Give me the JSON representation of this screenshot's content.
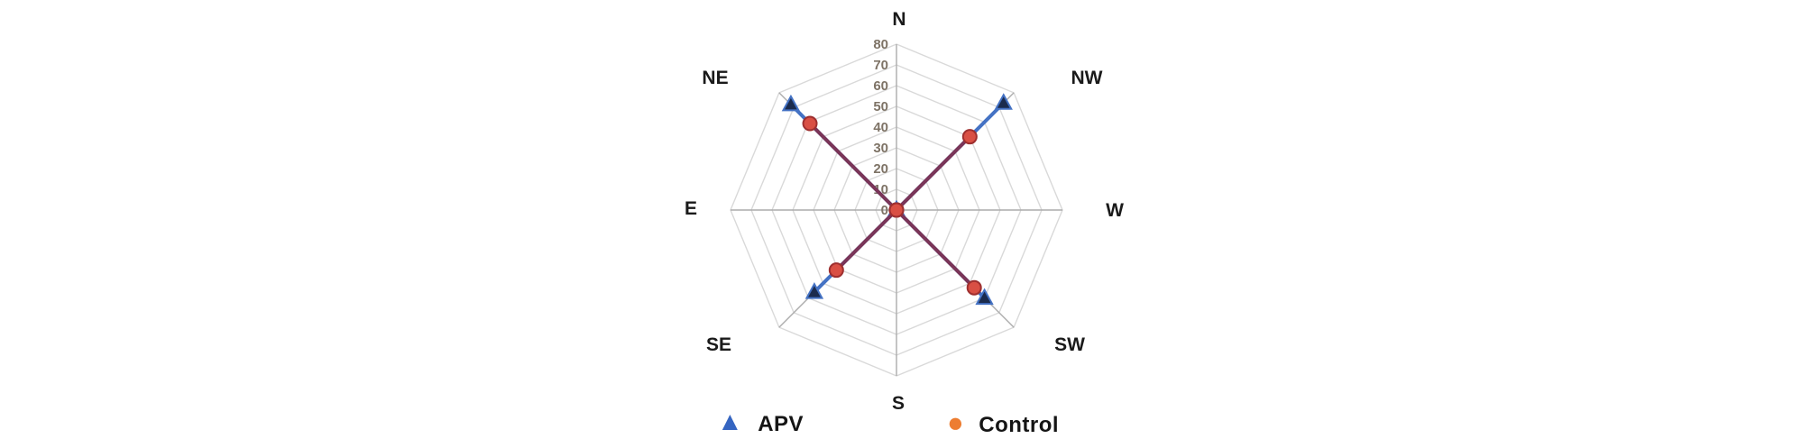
{
  "chart_data": {
    "type": "radar",
    "title": "",
    "categories": [
      "N",
      "NW",
      "W",
      "SW",
      "S",
      "SE",
      "E",
      "NE"
    ],
    "series": [
      {
        "name": "APV",
        "marker": "triangle",
        "line_color": "#4472C4",
        "marker_fill": "#1B2B4D",
        "marker_edge": "#4472C4",
        "legend_color": "#3565C1",
        "values": [
          0,
          73,
          0,
          60,
          0,
          56,
          0,
          72
        ]
      },
      {
        "name": "Control",
        "marker": "circle",
        "line_color": "#7A3558",
        "marker_fill": "#D94F44",
        "marker_edge": "#9E2F2F",
        "legend_color": "#ED7D31",
        "values": [
          0,
          50,
          0,
          53,
          0,
          41,
          0,
          59
        ]
      }
    ],
    "radial_ticks": [
      0,
      10,
      20,
      30,
      40,
      50,
      60,
      70,
      80
    ],
    "rmax": 80,
    "grid_on": true,
    "legend_position": "bottom",
    "colors": {
      "grid": "#D9D9D9",
      "spoke": "#ACACAC",
      "tick_text": "#7E7366",
      "axis_label_text": "#1A1A1A"
    }
  }
}
